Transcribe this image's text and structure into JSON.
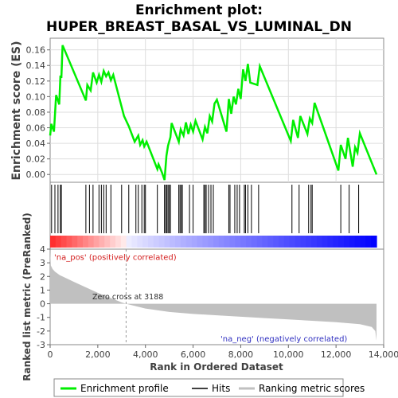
{
  "title_line1": "Enrichment plot:",
  "title_line2": "HUPER_BREAST_BASAL_VS_LUMINAL_DN",
  "colors": {
    "es_line": "#00ee00",
    "hits": "#000000",
    "metric_fill": "#c0c0c0",
    "pos_label": "#d42020",
    "neg_label": "#3030c0",
    "heatmap_red": "#ff0000",
    "heatmap_blue": "#0000ff"
  },
  "chart_data": [
    {
      "type": "line",
      "panel": "enrichment-profile",
      "ylabel": "Enrichment score (ES)",
      "xlim": [
        0,
        14000
      ],
      "ylim": [
        -0.01,
        0.175
      ],
      "yticks": [
        0.0,
        0.02,
        0.04,
        0.06,
        0.08,
        0.1,
        0.12,
        0.14,
        0.16
      ],
      "ytick_labels": [
        "0.00",
        "0.02",
        "0.04",
        "0.06",
        "0.08",
        "0.10",
        "0.12",
        "0.14",
        "0.16"
      ],
      "grid": true,
      "series": [
        {
          "name": "Enrichment profile",
          "x": [
            0,
            50,
            160,
            250,
            330,
            380,
            430,
            470,
            520,
            1500,
            1560,
            1700,
            1800,
            1950,
            2050,
            2150,
            2250,
            2350,
            2450,
            2550,
            2650,
            3100,
            3300,
            3550,
            3700,
            3780,
            3880,
            3950,
            4050,
            4500,
            4550,
            4700,
            4800,
            4880,
            4950,
            5050,
            5100,
            5400,
            5480,
            5600,
            5700,
            5800,
            5900,
            6000,
            6100,
            6400,
            6500,
            6600,
            6700,
            6800,
            6900,
            7000,
            7400,
            7500,
            7600,
            7700,
            7800,
            7900,
            8000,
            8100,
            8200,
            8300,
            8400,
            8700,
            8800,
            10100,
            10200,
            10400,
            10500,
            10800,
            10900,
            11000,
            11100,
            12100,
            12200,
            12400,
            12500,
            12700,
            12800,
            12900,
            13000,
            13700
          ],
          "y": [
            0.05,
            0.065,
            0.055,
            0.102,
            0.095,
            0.09,
            0.127,
            0.124,
            0.166,
            0.095,
            0.115,
            0.108,
            0.131,
            0.118,
            0.128,
            0.119,
            0.133,
            0.126,
            0.131,
            0.121,
            0.128,
            0.075,
            0.062,
            0.042,
            0.05,
            0.038,
            0.044,
            0.036,
            0.042,
            0.007,
            0.013,
            0.002,
            -0.007,
            0.024,
            0.037,
            0.048,
            0.066,
            0.042,
            0.058,
            0.05,
            0.067,
            0.052,
            0.064,
            0.055,
            0.069,
            0.045,
            0.061,
            0.053,
            0.075,
            0.068,
            0.091,
            0.096,
            0.055,
            0.097,
            0.078,
            0.1,
            0.09,
            0.11,
            0.097,
            0.135,
            0.12,
            0.142,
            0.118,
            0.115,
            0.139,
            0.043,
            0.07,
            0.047,
            0.075,
            0.052,
            0.072,
            0.066,
            0.092,
            0.005,
            0.038,
            0.02,
            0.047,
            0.01,
            0.035,
            0.028,
            0.053,
            0.0
          ]
        }
      ]
    },
    {
      "type": "scatter",
      "panel": "hits",
      "label": "Hits",
      "hit_ranks": [
        60,
        200,
        330,
        430,
        470,
        1500,
        1650,
        1800,
        2050,
        2150,
        2250,
        2350,
        2550,
        3000,
        3300,
        3600,
        3700,
        3850,
        3950,
        4000,
        4500,
        4800,
        4850,
        4900,
        4950,
        5000,
        5050,
        5400,
        5450,
        5500,
        5550,
        5850,
        6000,
        6450,
        6500,
        6550,
        6650,
        6750,
        6850,
        7500,
        7550,
        7750,
        7850,
        7950,
        8150,
        8200,
        8300,
        8450,
        8750,
        10150,
        10450,
        10850,
        10950,
        11000,
        12200,
        12550,
        12950
      ]
    },
    {
      "type": "area",
      "panel": "ranked-list-metric",
      "ylabel": "Ranked list metric (PreRanked)",
      "xlabel": "Rank in Ordered Dataset",
      "xlim": [
        0,
        14000
      ],
      "ylim": [
        -3,
        4
      ],
      "yticks": [
        -3,
        -2,
        -1,
        0,
        1,
        2,
        3,
        4
      ],
      "xticks": [
        0,
        2000,
        4000,
        6000,
        8000,
        10000,
        12000,
        14000
      ],
      "xtick_labels": [
        "0",
        "2,000",
        "4,000",
        "6,000",
        "8,000",
        "10,000",
        "12,000",
        "14,000"
      ],
      "zero_cross": 3188,
      "x": [
        0,
        30,
        100,
        200,
        400,
        700,
        1000,
        1500,
        2000,
        2500,
        3000,
        3188,
        4000,
        5000,
        6000,
        7000,
        8000,
        9000,
        10000,
        11000,
        12000,
        13000,
        13500,
        13650,
        13700
      ],
      "y": [
        4.0,
        2.8,
        2.55,
        2.35,
        2.1,
        1.85,
        1.6,
        1.2,
        0.8,
        0.45,
        0.1,
        0.0,
        -0.35,
        -0.6,
        -0.75,
        -0.85,
        -0.95,
        -1.05,
        -1.15,
        -1.25,
        -1.35,
        -1.5,
        -1.7,
        -2.0,
        -2.7
      ]
    }
  ],
  "annotations": {
    "pos": "'na_pos' (positively correlated)",
    "neg": "'na_neg' (negatively correlated)",
    "zero_cross": "Zero cross at 3188"
  },
  "legend": {
    "items": [
      "Enrichment profile",
      "Hits",
      "Ranking metric scores"
    ]
  }
}
